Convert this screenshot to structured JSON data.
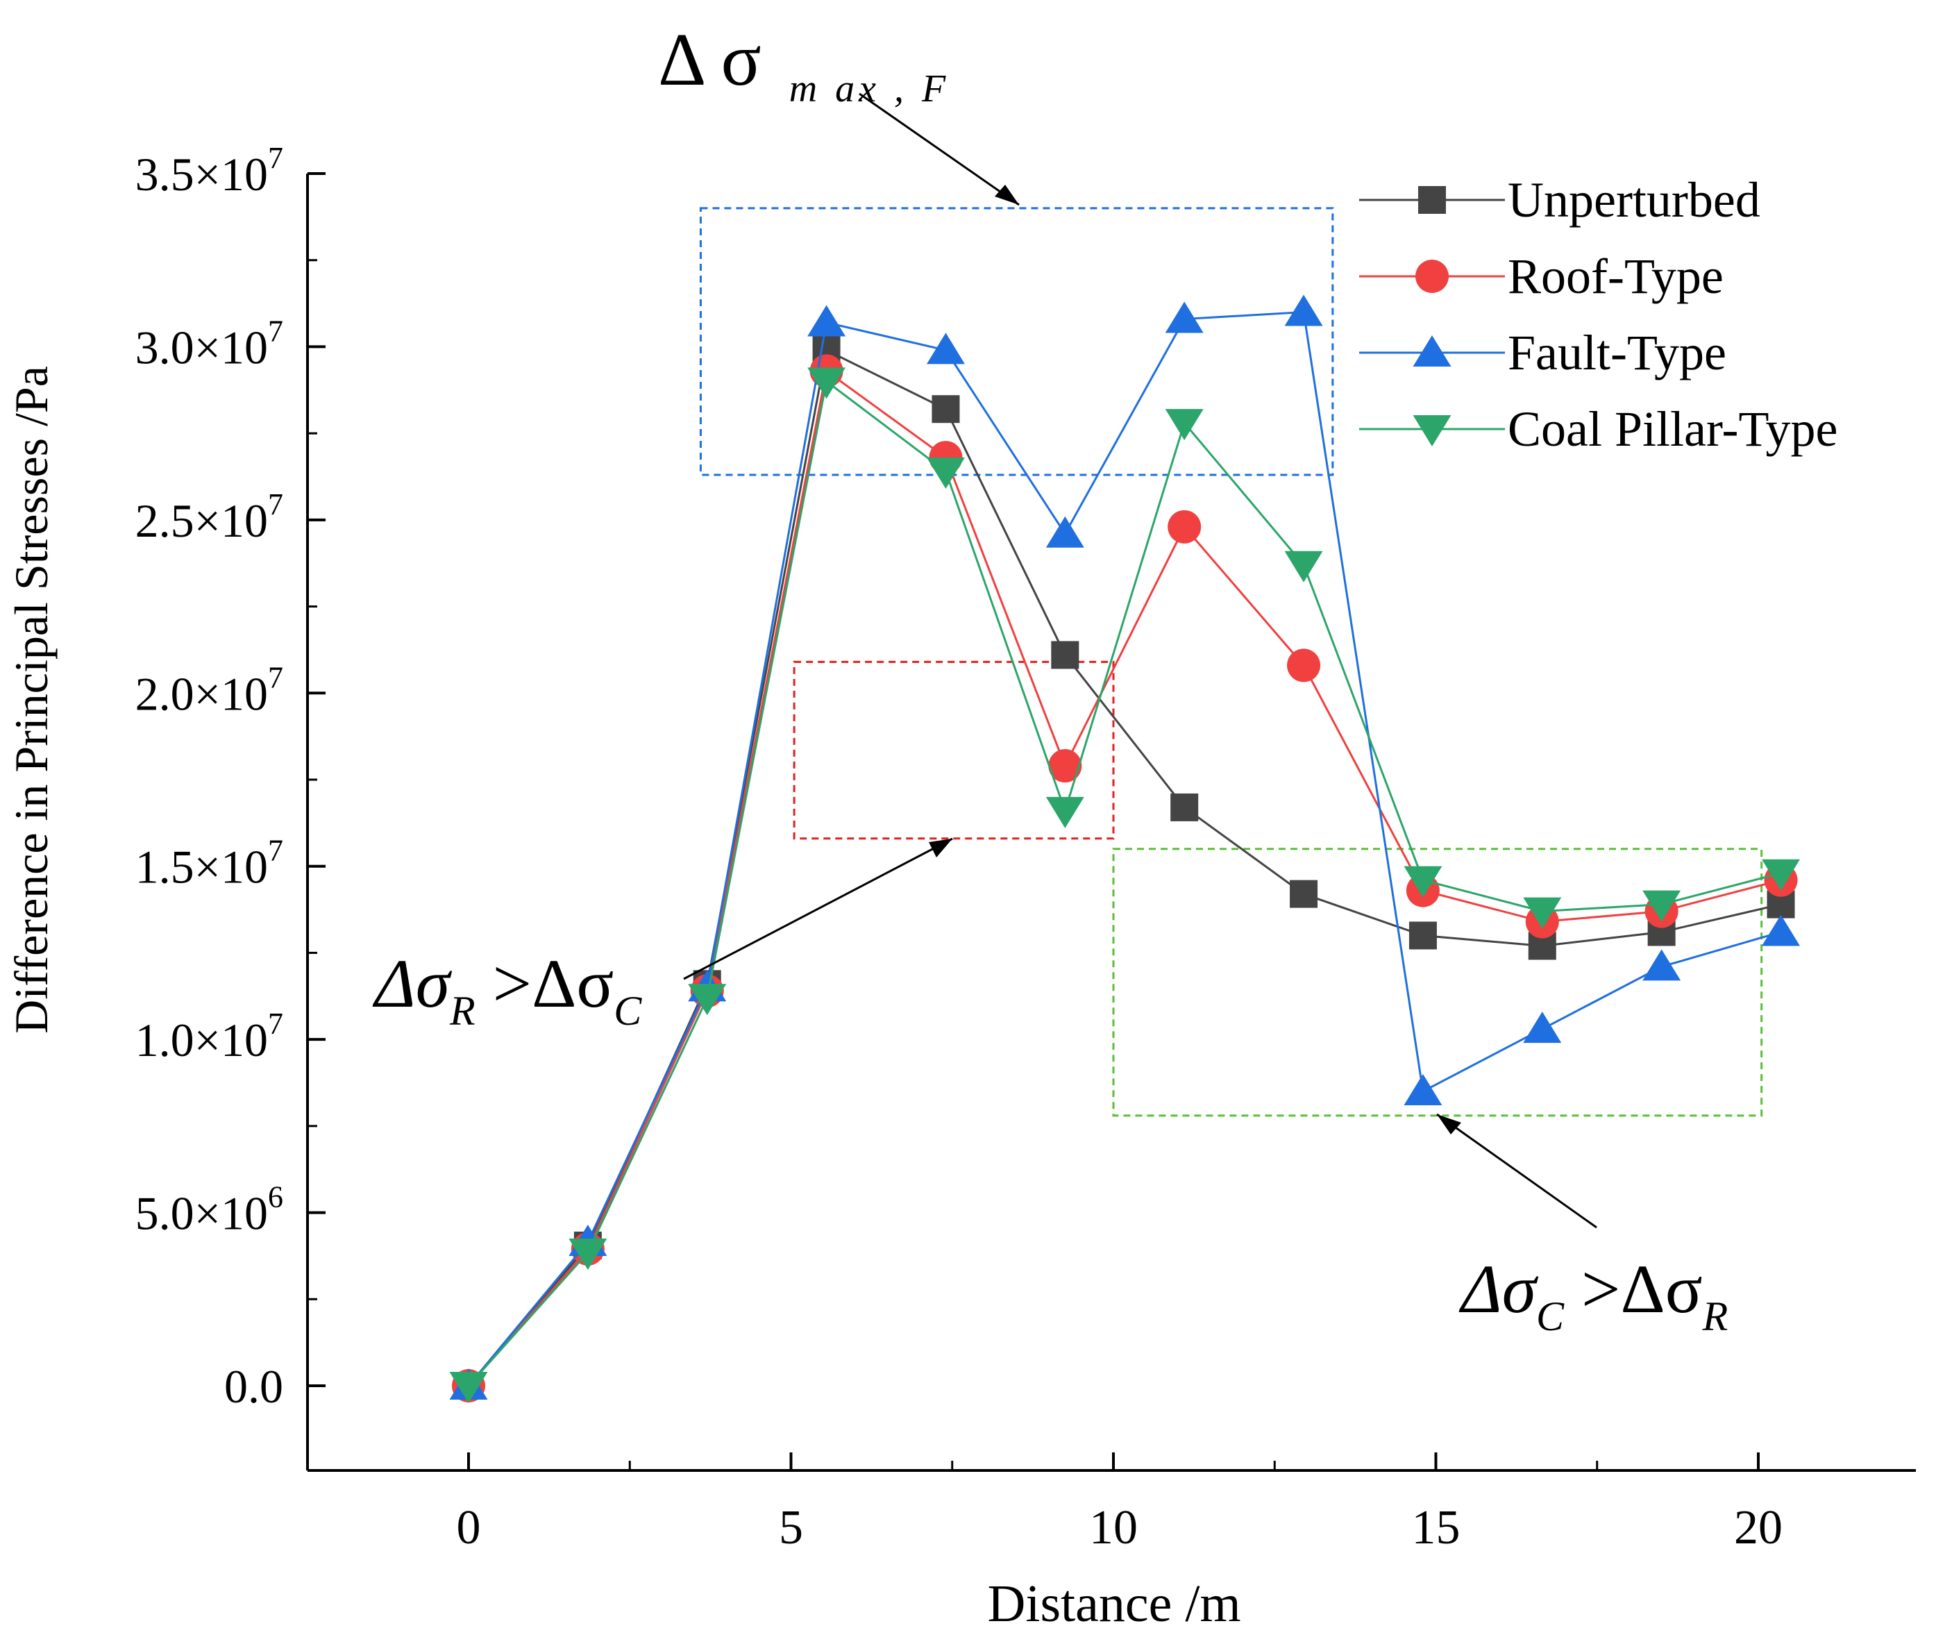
{
  "chart_data": {
    "type": "line",
    "xlabel": "Distance /m",
    "ylabel": "Difference in Principal Stresses /Pa",
    "xlim": [
      -2.5,
      22.5
    ],
    "ylim": [
      -2500000,
      35000000
    ],
    "x_ticks": [
      0,
      5,
      10,
      15,
      20
    ],
    "x_tick_labels": [
      "0",
      "5",
      "10",
      "15",
      "20"
    ],
    "y_ticks": [
      0,
      5000000,
      10000000,
      15000000,
      20000000,
      25000000,
      30000000,
      35000000
    ],
    "y_tick_labels": [
      {
        "mantissa": "0.0",
        "exp": ""
      },
      {
        "mantissa": "5.0×10",
        "exp": "6"
      },
      {
        "mantissa": "1.0×10",
        "exp": "7"
      },
      {
        "mantissa": "1.5×10",
        "exp": "7"
      },
      {
        "mantissa": "2.0×10",
        "exp": "7"
      },
      {
        "mantissa": "2.5×10",
        "exp": "7"
      },
      {
        "mantissa": "3.0×10",
        "exp": "7"
      },
      {
        "mantissa": "3.5×10",
        "exp": "7"
      }
    ],
    "x": [
      0,
      1.85,
      3.7,
      5.55,
      7.4,
      9.25,
      11.1,
      12.95,
      14.8,
      16.65,
      18.5,
      20.35
    ],
    "series": [
      {
        "name": "Unperturbed",
        "color": "#444444",
        "marker": "square",
        "values": [
          0,
          4050000,
          11600000,
          29900000,
          28200000,
          21100000,
          16700000,
          14200000,
          13000000,
          12700000,
          13100000,
          13900000
        ]
      },
      {
        "name": "Roof-Type",
        "color": "#f04040",
        "marker": "circle",
        "values": [
          0,
          3950000,
          11400000,
          29300000,
          26800000,
          17900000,
          24800000,
          20800000,
          14300000,
          13400000,
          13700000,
          14600000
        ]
      },
      {
        "name": "Fault-Type",
        "color": "#1f6fe0",
        "marker": "triangle-up",
        "values": [
          0,
          4150000,
          11500000,
          30700000,
          29900000,
          24600000,
          30800000,
          31000000,
          8500000,
          10300000,
          12100000,
          13100000
        ]
      },
      {
        "name": "Coal Pillar-Type",
        "color": "#2ca56a",
        "marker": "triangle-down",
        "values": [
          0,
          3850000,
          11200000,
          29000000,
          26400000,
          16600000,
          27800000,
          23700000,
          14600000,
          13700000,
          13900000,
          14800000
        ]
      }
    ],
    "regions": [
      {
        "name": "fault-max-region",
        "color": "#1f6fe0",
        "x_range": [
          3.6,
          13.4
        ],
        "y_range": [
          26300000,
          34000000
        ]
      },
      {
        "name": "roof-greater-region",
        "color": "#e02020",
        "x_range": [
          5.05,
          10.0
        ],
        "y_range": [
          15800000,
          20900000
        ]
      },
      {
        "name": "coal-greater-region",
        "color": "#5bbf3a",
        "x_range": [
          10.0,
          20.05
        ],
        "y_range": [
          7800000,
          15500000
        ]
      }
    ],
    "annotations": [
      {
        "name": "fault-max",
        "text": "Δ σ",
        "sub": "m ax , F"
      },
      {
        "name": "roof-gt-coal",
        "text": "Δσ",
        "sub1": "R",
        "mid": " >Δσ",
        "sub2": "C"
      },
      {
        "name": "coal-gt-roof",
        "text": "Δσ",
        "sub1": "C",
        "mid": " >Δσ",
        "sub2": "R"
      }
    ],
    "legend_position": "top-right"
  }
}
